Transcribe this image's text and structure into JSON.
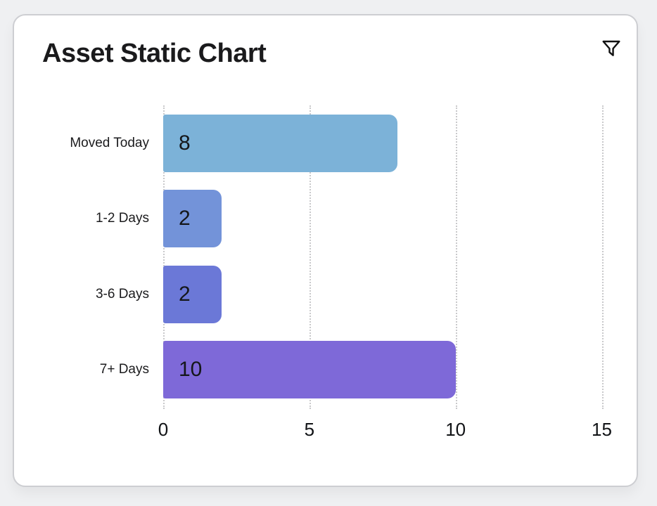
{
  "header": {
    "title": "Asset Static Chart",
    "filter_icon": "funnel-filter-icon"
  },
  "chart_data": {
    "type": "bar",
    "orientation": "horizontal",
    "title": "Asset Static Chart",
    "categories": [
      "Moved Today",
      "1-2 Days",
      "3-6 Days",
      "7+ Days"
    ],
    "values": [
      8,
      2,
      2,
      10
    ],
    "bar_colors": [
      "#7cb2d8",
      "#7393d9",
      "#6b78d7",
      "#7e69d8"
    ],
    "xticks": [
      0,
      5,
      10,
      15
    ],
    "xlim": [
      0,
      15
    ],
    "xlabel": "",
    "ylabel": "",
    "grid": "vertical dotted gridlines",
    "legend": "none",
    "value_labels_inside_bars": true
  },
  "colors": {
    "page_background": "#eff0f2",
    "card_background": "#ffffff",
    "card_border": "#cdced2",
    "gridline": "#c9c9cb",
    "text_primary": "#1a1a1c"
  }
}
